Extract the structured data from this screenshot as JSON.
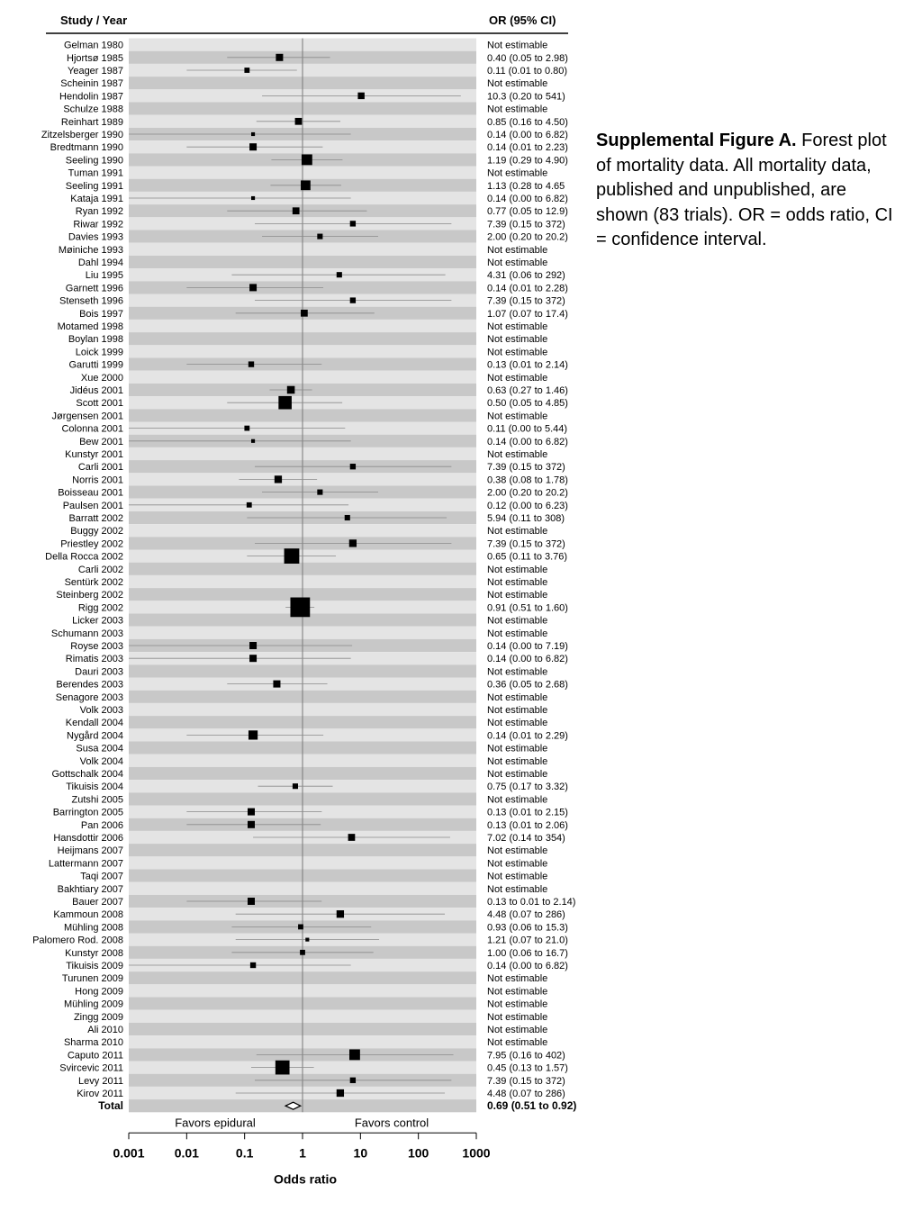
{
  "header": {
    "study_label": "Study / Year",
    "or_label": "OR  (95% CI)"
  },
  "caption": {
    "bold": "Supplemental Figure A.",
    "text": " Forest plot of mortality data. All mortality data, published and unpublished, are shown (83 trials). OR = odds ratio, CI = confidence interval."
  },
  "chart_data": {
    "type": "forest",
    "xscale": "log",
    "xlim": [
      0.001,
      1000
    ],
    "xticks": [
      0.001,
      0.01,
      0.1,
      1,
      10,
      100,
      1000
    ],
    "xtick_labels": [
      "0.001",
      "0.01",
      "0.1",
      "1",
      "10",
      "100",
      "1000"
    ],
    "xlabel": "Odds ratio",
    "reference_line": 1,
    "left_label": "Favors epidural",
    "right_label": "Favors control",
    "studies": [
      {
        "name": "Gelman 1980",
        "or": null,
        "lo": null,
        "hi": null,
        "text": "Not estimable",
        "w": 0
      },
      {
        "name": "Hjortsø 1985",
        "or": 0.4,
        "lo": 0.05,
        "hi": 2.98,
        "text": "0.40 (0.05 to 2.98)",
        "w": 1.0
      },
      {
        "name": "Yeager 1987",
        "or": 0.11,
        "lo": 0.01,
        "hi": 0.8,
        "text": "0.11 (0.01 to 0.80)",
        "w": 0.6
      },
      {
        "name": "Scheinin 1987",
        "or": null,
        "lo": null,
        "hi": null,
        "text": "Not estimable",
        "w": 0
      },
      {
        "name": "Hendolin 1987",
        "or": 10.3,
        "lo": 0.2,
        "hi": 541,
        "text": "10.3 (0.20 to 541)",
        "w": 0.9
      },
      {
        "name": "Schulze 1988",
        "or": null,
        "lo": null,
        "hi": null,
        "text": "Not estimable",
        "w": 0
      },
      {
        "name": "Reinhart 1989",
        "or": 0.85,
        "lo": 0.16,
        "hi": 4.5,
        "text": "0.85 (0.16 to 4.50)",
        "w": 0.95
      },
      {
        "name": "Zitzelsberger 1990",
        "or": 0.14,
        "lo": 0.0,
        "hi": 6.82,
        "text": "0.14 (0.00 to 6.82)",
        "w": 0.3
      },
      {
        "name": "Bredtmann 1990",
        "or": 0.14,
        "lo": 0.01,
        "hi": 2.23,
        "text": "0.14 (0.01 to 2.23)",
        "w": 1.0
      },
      {
        "name": "Seeling 1990",
        "or": 1.19,
        "lo": 0.29,
        "hi": 4.9,
        "text": "1.19 (0.29 to 4.90)",
        "w": 1.7
      },
      {
        "name": "Tuman 1991",
        "or": null,
        "lo": null,
        "hi": null,
        "text": "Not estimable",
        "w": 0
      },
      {
        "name": "Seeling 1991",
        "or": 1.13,
        "lo": 0.28,
        "hi": 4.65,
        "text": "1.13 (0.28 to 4.65",
        "w": 1.5
      },
      {
        "name": "Kataja 1991",
        "or": 0.14,
        "lo": 0.0,
        "hi": 6.82,
        "text": "0.14 (0.00 to 6.82)",
        "w": 0.3
      },
      {
        "name": "Ryan 1992",
        "or": 0.77,
        "lo": 0.05,
        "hi": 12.9,
        "text": "0.77 (0.05 to 12.9)",
        "w": 0.95
      },
      {
        "name": "Riwar 1992",
        "or": 7.39,
        "lo": 0.15,
        "hi": 372,
        "text": "7.39 (0.15 to 372)",
        "w": 0.7
      },
      {
        "name": "Davies 1993",
        "or": 2.0,
        "lo": 0.2,
        "hi": 20.2,
        "text": "2.00 (0.20 to 20.2)",
        "w": 0.65
      },
      {
        "name": "Møiniche 1993",
        "or": null,
        "lo": null,
        "hi": null,
        "text": "Not estimable",
        "w": 0
      },
      {
        "name": "Dahl 1994",
        "or": null,
        "lo": null,
        "hi": null,
        "text": "Not estimable",
        "w": 0
      },
      {
        "name": "Liu 1995",
        "or": 4.31,
        "lo": 0.06,
        "hi": 292,
        "text": "4.31 (0.06 to 292)",
        "w": 0.65
      },
      {
        "name": "Garnett 1996",
        "or": 0.14,
        "lo": 0.01,
        "hi": 2.28,
        "text": "0.14 (0.01 to 2.28)",
        "w": 1.0
      },
      {
        "name": "Stenseth 1996",
        "or": 7.39,
        "lo": 0.15,
        "hi": 372,
        "text": "7.39 (0.15 to 372)",
        "w": 0.7
      },
      {
        "name": "Bois 1997",
        "or": 1.07,
        "lo": 0.07,
        "hi": 17.4,
        "text": "1.07 (0.07 to 17.4)",
        "w": 0.95
      },
      {
        "name": "Motamed 1998",
        "or": null,
        "lo": null,
        "hi": null,
        "text": "Not estimable",
        "w": 0
      },
      {
        "name": "Boylan 1998",
        "or": null,
        "lo": null,
        "hi": null,
        "text": "Not estimable",
        "w": 0
      },
      {
        "name": "Loick 1999",
        "or": null,
        "lo": null,
        "hi": null,
        "text": "Not estimable",
        "w": 0
      },
      {
        "name": "Garutti 1999",
        "or": 0.13,
        "lo": 0.01,
        "hi": 2.14,
        "text": "0.13 (0.01 to 2.14)",
        "w": 0.7
      },
      {
        "name": "Xue 2000",
        "or": null,
        "lo": null,
        "hi": null,
        "text": "Not estimable",
        "w": 0
      },
      {
        "name": "Jidéus 2001",
        "or": 0.63,
        "lo": 0.27,
        "hi": 1.46,
        "text": "0.63 (0.27 to 1.46)",
        "w": 1.1
      },
      {
        "name": "Scott 2001",
        "or": 0.5,
        "lo": 0.05,
        "hi": 4.85,
        "text": "0.50 (0.05 to 4.85)",
        "w": 2.2
      },
      {
        "name": "Jørgensen 2001",
        "or": null,
        "lo": null,
        "hi": null,
        "text": "Not estimable",
        "w": 0
      },
      {
        "name": "Colonna 2001",
        "or": 0.11,
        "lo": 0.0,
        "hi": 5.44,
        "text": "0.11 (0.00 to 5.44)",
        "w": 0.6
      },
      {
        "name": "Bew 2001",
        "or": 0.14,
        "lo": 0.0,
        "hi": 6.82,
        "text": "0.14 (0.00 to 6.82)",
        "w": 0.3
      },
      {
        "name": "Kunstyr 2001",
        "or": null,
        "lo": null,
        "hi": null,
        "text": "Not estimable",
        "w": 0
      },
      {
        "name": "Carli 2001",
        "or": 7.39,
        "lo": 0.15,
        "hi": 372,
        "text": "7.39 (0.15 to 372)",
        "w": 0.7
      },
      {
        "name": "Norris 2001",
        "or": 0.38,
        "lo": 0.08,
        "hi": 1.78,
        "text": "0.38 (0.08 to 1.78)",
        "w": 1.05
      },
      {
        "name": "Boisseau 2001",
        "or": 2.0,
        "lo": 0.2,
        "hi": 20.2,
        "text": "2.00 (0.20 to 20.2)",
        "w": 0.65
      },
      {
        "name": "Paulsen 2001",
        "or": 0.12,
        "lo": 0.0,
        "hi": 6.23,
        "text": "0.12 (0.00 to 6.23)",
        "w": 0.6
      },
      {
        "name": "Barratt 2002",
        "or": 5.94,
        "lo": 0.11,
        "hi": 308,
        "text": "5.94 (0.11 to 308)",
        "w": 0.65
      },
      {
        "name": "Buggy 2002",
        "or": null,
        "lo": null,
        "hi": null,
        "text": "Not estimable",
        "w": 0
      },
      {
        "name": "Priestley 2002",
        "or": 7.39,
        "lo": 0.15,
        "hi": 372,
        "text": "7.39 (0.15 to 372)",
        "w": 1.05
      },
      {
        "name": "Della Rocca 2002",
        "or": 0.65,
        "lo": 0.11,
        "hi": 3.76,
        "text": "0.65 (0.11 to 3.76)",
        "w": 2.6
      },
      {
        "name": "Carli 2002",
        "or": null,
        "lo": null,
        "hi": null,
        "text": "Not estimable",
        "w": 0
      },
      {
        "name": "Sentürk 2002",
        "or": null,
        "lo": null,
        "hi": null,
        "text": "Not estimable",
        "w": 0
      },
      {
        "name": "Steinberg 2002",
        "or": null,
        "lo": null,
        "hi": null,
        "text": "Not estimable",
        "w": 0
      },
      {
        "name": "Rigg 2002",
        "or": 0.91,
        "lo": 0.51,
        "hi": 1.6,
        "text": "0.91 (0.51 to 1.60)",
        "w": 3.5
      },
      {
        "name": "Licker 2003",
        "or": null,
        "lo": null,
        "hi": null,
        "text": "Not estimable",
        "w": 0
      },
      {
        "name": "Schumann 2003",
        "or": null,
        "lo": null,
        "hi": null,
        "text": "Not estimable",
        "w": 0
      },
      {
        "name": "Royse 2003",
        "or": 0.14,
        "lo": 0.0,
        "hi": 7.19,
        "text": "0.14 (0.00 to 7.19)",
        "w": 1.0
      },
      {
        "name": "Rimatis 2003",
        "or": 0.14,
        "lo": 0.0,
        "hi": 6.82,
        "text": "0.14 (0.00 to 6.82)",
        "w": 1.0
      },
      {
        "name": "Dauri 2003",
        "or": null,
        "lo": null,
        "hi": null,
        "text": "Not estimable",
        "w": 0
      },
      {
        "name": "Berendes 2003",
        "or": 0.36,
        "lo": 0.05,
        "hi": 2.68,
        "text": "0.36 (0.05 to 2.68)",
        "w": 1.0
      },
      {
        "name": "Senagore 2003",
        "or": null,
        "lo": null,
        "hi": null,
        "text": "Not estimable",
        "w": 0
      },
      {
        "name": "Volk 2003",
        "or": null,
        "lo": null,
        "hi": null,
        "text": "Not estimable",
        "w": 0
      },
      {
        "name": "Kendall 2004",
        "or": null,
        "lo": null,
        "hi": null,
        "text": "Not estimable",
        "w": 0
      },
      {
        "name": "Nygård 2004",
        "or": 0.14,
        "lo": 0.01,
        "hi": 2.29,
        "text": "0.14 (0.01 to 2.29)",
        "w": 1.4
      },
      {
        "name": "Susa 2004",
        "or": null,
        "lo": null,
        "hi": null,
        "text": "Not estimable",
        "w": 0
      },
      {
        "name": "Volk 2004",
        "or": null,
        "lo": null,
        "hi": null,
        "text": "Not estimable",
        "w": 0
      },
      {
        "name": "Gottschalk 2004",
        "or": null,
        "lo": null,
        "hi": null,
        "text": "Not estimable",
        "w": 0
      },
      {
        "name": "Tikuisis 2004",
        "or": 0.75,
        "lo": 0.17,
        "hi": 3.32,
        "text": "0.75 (0.17 to 3.32)",
        "w": 0.65
      },
      {
        "name": "Zutshi 2005",
        "or": null,
        "lo": null,
        "hi": null,
        "text": "Not estimable",
        "w": 0
      },
      {
        "name": "Barrington 2005",
        "or": 0.13,
        "lo": 0.01,
        "hi": 2.15,
        "text": "0.13 (0.01 to 2.15)",
        "w": 1.0
      },
      {
        "name": "Pan 2006",
        "or": 0.13,
        "lo": 0.01,
        "hi": 2.06,
        "text": "0.13 (0.01 to 2.06)",
        "w": 1.0
      },
      {
        "name": "Hansdottir 2006",
        "or": 7.02,
        "lo": 0.14,
        "hi": 354,
        "text": "7.02 (0.14 to 354)",
        "w": 0.95
      },
      {
        "name": "Heijmans 2007",
        "or": null,
        "lo": null,
        "hi": null,
        "text": "Not estimable",
        "w": 0
      },
      {
        "name": "Lattermann 2007",
        "or": null,
        "lo": null,
        "hi": null,
        "text": "Not estimable",
        "w": 0
      },
      {
        "name": "Taqi 2007",
        "or": null,
        "lo": null,
        "hi": null,
        "text": "Not estimable",
        "w": 0
      },
      {
        "name": "Bakhtiary 2007",
        "or": null,
        "lo": null,
        "hi": null,
        "text": "Not estimable",
        "w": 0
      },
      {
        "name": "Bauer 2007",
        "or": 0.13,
        "lo": 0.01,
        "hi": 2.14,
        "text": "0.13 to 0.01 to 2.14)",
        "w": 1.0
      },
      {
        "name": "Kammoun 2008",
        "or": 4.48,
        "lo": 0.07,
        "hi": 286,
        "text": "4.48 (0.07 to 286)",
        "w": 1.05
      },
      {
        "name": "Mühling 2008",
        "or": 0.93,
        "lo": 0.06,
        "hi": 15.3,
        "text": "0.93 (0.06 to 15.3)",
        "w": 0.6
      },
      {
        "name": "Palomero Rod. 2008",
        "or": 1.21,
        "lo": 0.07,
        "hi": 21.0,
        "text": "1.21 (0.07 to 21.0)",
        "w": 0.3
      },
      {
        "name": "Kunstyr 2008",
        "or": 1.0,
        "lo": 0.06,
        "hi": 16.7,
        "text": "1.00 (0.06 to 16.7)",
        "w": 0.6
      },
      {
        "name": "Tikuisis 2009",
        "or": 0.14,
        "lo": 0.0,
        "hi": 6.82,
        "text": "0.14 (0.00 to 6.82)",
        "w": 0.7
      },
      {
        "name": "Turunen 2009",
        "or": null,
        "lo": null,
        "hi": null,
        "text": "Not estimable",
        "w": 0
      },
      {
        "name": "Hong 2009",
        "or": null,
        "lo": null,
        "hi": null,
        "text": "Not estimable",
        "w": 0
      },
      {
        "name": "Mühling 2009",
        "or": null,
        "lo": null,
        "hi": null,
        "text": "Not estimable",
        "w": 0
      },
      {
        "name": "Zingg 2009",
        "or": null,
        "lo": null,
        "hi": null,
        "text": "Not estimable",
        "w": 0
      },
      {
        "name": "Ali 2010",
        "or": null,
        "lo": null,
        "hi": null,
        "text": "Not estimable",
        "w": 0
      },
      {
        "name": "Sharma 2010",
        "or": null,
        "lo": null,
        "hi": null,
        "text": "Not estimable",
        "w": 0
      },
      {
        "name": "Caputo  2011",
        "or": 7.95,
        "lo": 0.16,
        "hi": 402,
        "text": "7.95 (0.16 to 402)",
        "w": 1.7
      },
      {
        "name": "Svircevic 2011",
        "or": 0.45,
        "lo": 0.13,
        "hi": 1.57,
        "text": "0.45 (0.13 to 1.57)",
        "w": 2.4
      },
      {
        "name": "Levy 2011",
        "or": 7.39,
        "lo": 0.15,
        "hi": 372,
        "text": "7.39 (0.15 to 372)",
        "w": 0.7
      },
      {
        "name": "Kirov 2011",
        "or": 4.48,
        "lo": 0.07,
        "hi": 286,
        "text": "4.48 (0.07 to 286)",
        "w": 1.05
      }
    ],
    "total": {
      "name": "Total",
      "or": 0.69,
      "lo": 0.51,
      "hi": 0.92,
      "text": "0.69 (0.51 to 0.92)"
    },
    "colors": {
      "row_light": "#e4e4e4",
      "row_dark": "#c8c8c8",
      "marker": "#000000",
      "ci_line": "#8a8a8a"
    }
  }
}
